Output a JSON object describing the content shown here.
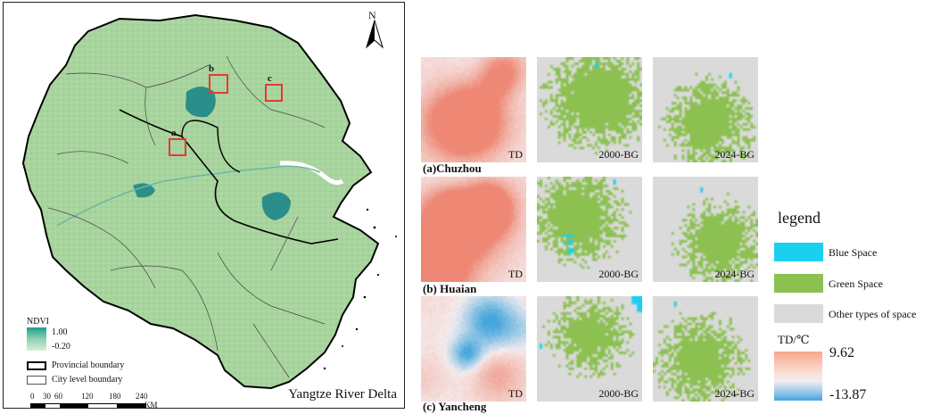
{
  "map": {
    "title": "Yangtze River Delta",
    "north_label": "N",
    "legend": {
      "ndvi_title": "NDVI",
      "ndvi_max": "1.00",
      "ndvi_min": "-0.20",
      "provincial_label": "Provincial boundary",
      "city_label": "City level boundary"
    },
    "scale": {
      "ticks": [
        "0",
        "30",
        "60",
        "120",
        "180",
        "240"
      ],
      "unit": "KM"
    },
    "sites": [
      {
        "letter": "a"
      },
      {
        "letter": "b"
      },
      {
        "letter": "c"
      }
    ],
    "colors": {
      "land": "#a9d49c",
      "water": "#1f8d8f",
      "boundary_provincial": "#000000",
      "boundary_city": "#555555",
      "site_box": "#e53935"
    }
  },
  "tiles": {
    "rows": [
      {
        "label": "(a)Chuzhou",
        "tiles": [
          "TD",
          "2000-BG",
          "2024-BG"
        ]
      },
      {
        "label": "(b) Huaian",
        "tiles": [
          "TD",
          "2000-BG",
          "2024-BG"
        ]
      },
      {
        "label": "(c) Yancheng",
        "tiles": [
          "TD",
          "2000-BG",
          "2024-BG"
        ]
      }
    ]
  },
  "legend": {
    "title": "legend",
    "items": [
      {
        "label": "Blue Space",
        "color": "#1bd0ee"
      },
      {
        "label": "Green Space",
        "color": "#8cc152"
      },
      {
        "label": "Other types of space",
        "color": "#dadada"
      }
    ],
    "td_title": "TD/℃",
    "td_max": "9.62",
    "td_min": "-13.87"
  }
}
